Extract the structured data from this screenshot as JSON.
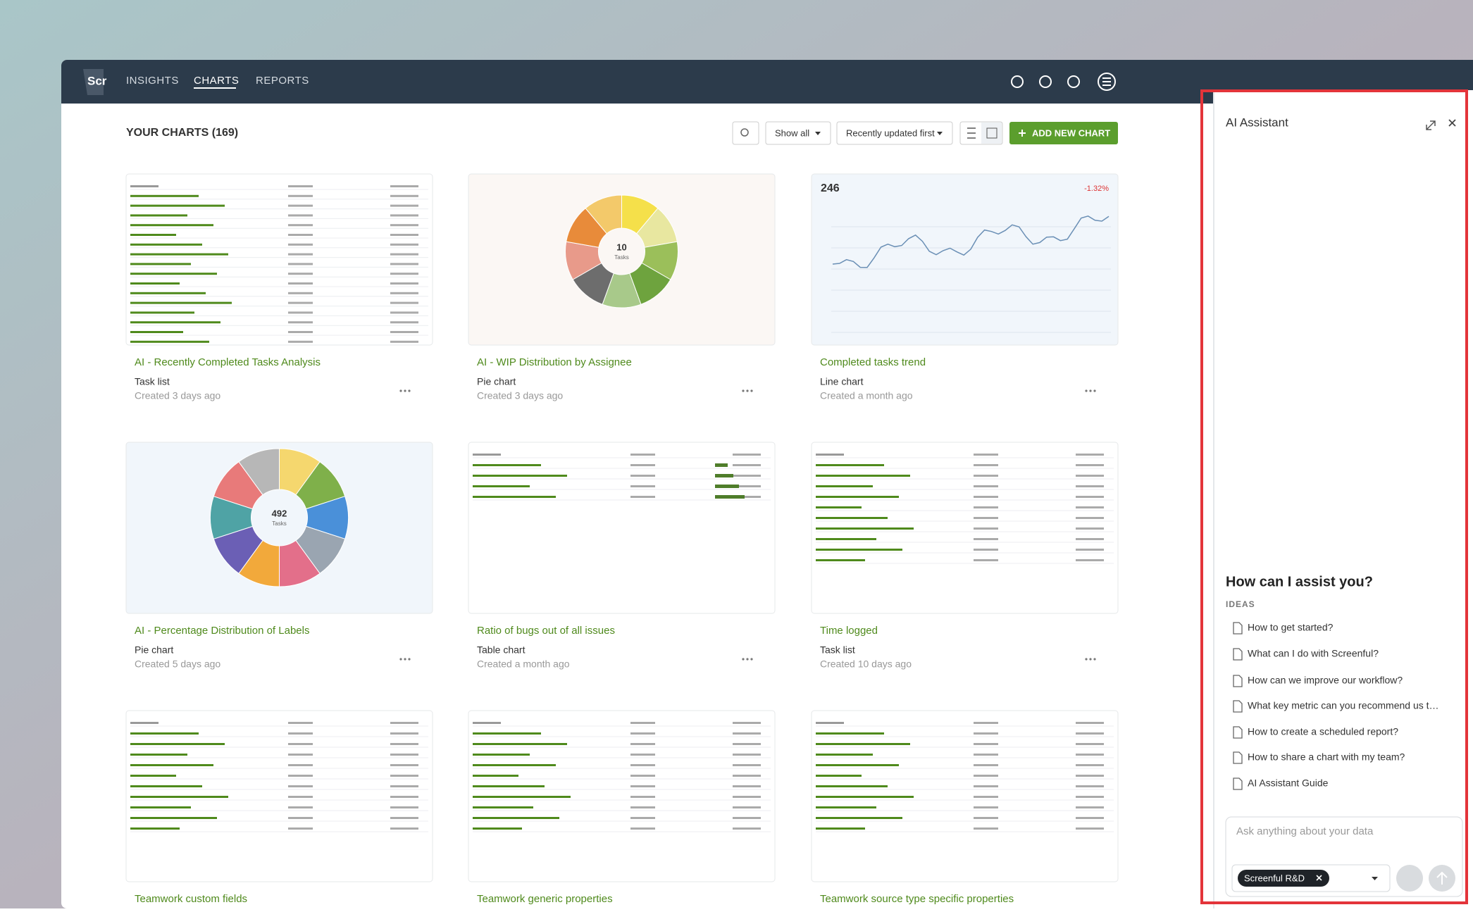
{
  "nav": {
    "logo": "Scr",
    "items": [
      "INSIGHTS",
      "CHARTS",
      "REPORTS"
    ]
  },
  "toolbar": {
    "title": "YOUR CHARTS (169)",
    "filter": "Show all",
    "sort": "Recently updated first",
    "add_button": "ADD NEW CHART"
  },
  "cards": [
    {
      "title": "AI - Recently Completed Tasks Analysis",
      "type": "Task list",
      "created": "Created 3 days ago"
    },
    {
      "title": "AI - WIP Distribution by Assignee",
      "type": "Pie chart",
      "created": "Created 3 days ago"
    },
    {
      "title": "Completed tasks trend",
      "type": "Line chart",
      "created": "Created a month ago"
    },
    {
      "title": "AI - Percentage Distribution of Labels",
      "type": "Pie chart",
      "created": "Created 5 days ago"
    },
    {
      "title": "Ratio of bugs out of all issues",
      "type": "Table chart",
      "created": "Created a month ago"
    },
    {
      "title": "Time logged",
      "type": "Task list",
      "created": "Created 10 days ago"
    },
    {
      "title": "Teamwork custom fields"
    },
    {
      "title": "Teamwork generic properties"
    },
    {
      "title": "Teamwork source type specific properties"
    }
  ],
  "thumbnails": {
    "wip_center": "10",
    "wip_unit": "Tasks",
    "trend_value": "246",
    "trend_change": "-1.32%",
    "labels_center": "492",
    "labels_unit": "Tasks"
  },
  "assistant": {
    "title": "AI Assistant",
    "heading": "How can I assist you?",
    "ideas_label": "IDEAS",
    "ideas": [
      "How to get started?",
      "What can I do with Screenful?",
      "How can we improve our workflow?",
      "What key metric can you recommend us t…",
      "How to create a scheduled report?",
      "How to share a chart with my team?",
      "AI Assistant Guide"
    ],
    "placeholder": "Ask anything about your data",
    "chip": "Screenful R&D"
  }
}
